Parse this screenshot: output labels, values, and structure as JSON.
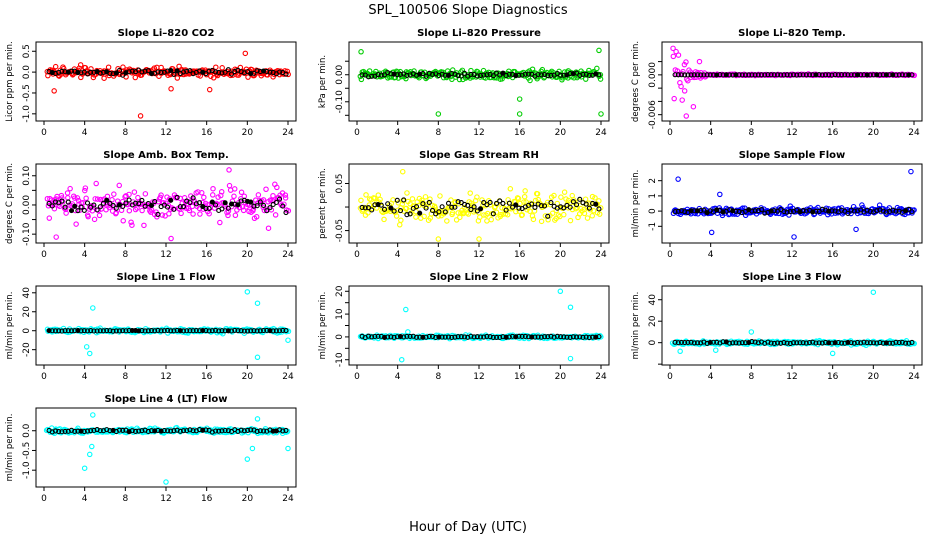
{
  "figure": {
    "title": "SPL_100506  Slope Diagnostics",
    "xlabel": "Hour of Day (UTC)"
  },
  "chart_data": [
    {
      "type": "scatter",
      "title": "Slope Li–820 CO2",
      "ylabel": "Licor ppm per min.",
      "color": "#ff0000",
      "xlim": [
        0,
        24
      ],
      "xticks": [
        "0",
        "4",
        "8",
        "12",
        "16",
        "20",
        "24"
      ],
      "ylim": [
        -1.1,
        0.65
      ],
      "yticks": [
        -1.0,
        -0.5,
        0.0,
        0.5
      ],
      "yticklabels": [
        "-1.0",
        "-0.5",
        "0.0",
        "0.5"
      ],
      "spread": 0.22,
      "black_spread": 0.12,
      "outliers": [
        [
          1,
          -0.45
        ],
        [
          9.5,
          -1.05
        ],
        [
          12.5,
          -0.4
        ],
        [
          16.3,
          -0.42
        ],
        [
          19.8,
          0.45
        ]
      ]
    },
    {
      "type": "scatter",
      "title": "Slope Li–820 Pressure",
      "ylabel": "kPa per min.",
      "color": "#00cc00",
      "xlim": [
        0,
        24
      ],
      "xticks": [
        "0",
        "4",
        "8",
        "12",
        "16",
        "20",
        "24"
      ],
      "ylim": [
        -0.16,
        0.11
      ],
      "yticks": [
        -0.15,
        -0.1,
        -0.05,
        0.0,
        0.05
      ],
      "yticklabels": [
        "",
        "-0.10",
        "",
        "0.00",
        ""
      ],
      "spread": 0.03,
      "black_spread": 0.015,
      "outliers": [
        [
          0.4,
          0.085
        ],
        [
          8,
          -0.145
        ],
        [
          16,
          -0.145
        ],
        [
          16,
          -0.09
        ],
        [
          23.8,
          0.09
        ],
        [
          24,
          -0.145
        ]
      ]
    },
    {
      "type": "scatter",
      "title": "Slope Li–820 Temp.",
      "ylabel": "degrees C per min.",
      "color": "#ff00ff",
      "xlim": [
        0,
        24
      ],
      "xticks": [
        "0",
        "4",
        "8",
        "12",
        "16",
        "20",
        "24"
      ],
      "ylim": [
        -0.0065,
        0.0045
      ],
      "yticks": [
        -0.006,
        -0.004,
        -0.002,
        0.0,
        0.002
      ],
      "yticklabels": [
        "-0.006",
        "",
        "",
        "0.000",
        ""
      ],
      "spread": 0.0002,
      "black_spread": 5e-05,
      "transient_until": 3.6,
      "transient_amp": 0.0028,
      "outliers": [
        [
          0.3,
          0.004
        ],
        [
          0.6,
          0.0035
        ],
        [
          1.2,
          -0.0038
        ],
        [
          1.6,
          -0.0062
        ],
        [
          2.3,
          -0.0048
        ],
        [
          2.9,
          0.002
        ]
      ]
    },
    {
      "type": "scatter",
      "title": "Slope Amb. Box Temp.",
      "ylabel": "degrees C per min.",
      "color": "#ff00ff",
      "xlim": [
        0,
        24
      ],
      "xticks": [
        "0",
        "4",
        "8",
        "12",
        "16",
        "20",
        "24"
      ],
      "ylim": [
        -0.12,
        0.13
      ],
      "yticks": [
        -0.1,
        -0.05,
        0.0,
        0.05,
        0.1
      ],
      "yticklabels": [
        "-0.10",
        "",
        "0.00",
        "",
        "0.10"
      ],
      "spread": 0.1,
      "black_spread": 0.05,
      "outliers": [
        [
          12.5,
          -0.115
        ],
        [
          18.2,
          0.12
        ],
        [
          1.2,
          -0.11
        ]
      ]
    },
    {
      "type": "scatter",
      "title": "Slope Gas Stream RH",
      "ylabel": "percent per min.",
      "color": "#ffff00",
      "xlim": [
        0,
        24
      ],
      "xticks": [
        "0",
        "4",
        "8",
        "12",
        "16",
        "20",
        "24"
      ],
      "ylim": [
        -0.07,
        0.085
      ],
      "yticks": [
        -0.05,
        0.0,
        0.05
      ],
      "yticklabels": [
        "-0.05",
        "",
        "0.05"
      ],
      "spread": 0.058,
      "black_spread": 0.03,
      "outliers": [
        [
          8,
          -0.068
        ],
        [
          12,
          -0.068
        ],
        [
          4.5,
          0.075
        ]
      ]
    },
    {
      "type": "scatter",
      "title": "Slope Sample Flow",
      "ylabel": "ml/min per min.",
      "color": "#0000ff",
      "xlim": [
        0,
        24
      ],
      "xticks": [
        "0",
        "4",
        "8",
        "12",
        "16",
        "20",
        "24"
      ],
      "ylim": [
        -1.9,
        2.9
      ],
      "yticks": [
        -1,
        0,
        1,
        2
      ],
      "yticklabels": [
        "-1",
        "0",
        "1",
        "2"
      ],
      "spread": 0.5,
      "black_spread": 0.25,
      "outliers": [
        [
          0.8,
          2.1
        ],
        [
          23.7,
          2.6
        ],
        [
          4.1,
          -1.4
        ],
        [
          12.2,
          -1.7
        ],
        [
          18.3,
          -1.2
        ],
        [
          4.9,
          1.1
        ]
      ]
    },
    {
      "type": "scatter",
      "title": "Slope Line 1 Flow",
      "ylabel": "ml/min per min.",
      "color": "#00ffff",
      "xlim": [
        0,
        24
      ],
      "xticks": [
        "0",
        "4",
        "8",
        "12",
        "16",
        "20",
        "24"
      ],
      "ylim": [
        -33,
        44
      ],
      "yticks": [
        -20,
        0,
        20,
        40
      ],
      "yticklabels": [
        "-20",
        "0",
        "20",
        "40"
      ],
      "spread": 4,
      "black_spread": 0.8,
      "outliers": [
        [
          4.8,
          24
        ],
        [
          4.2,
          -17
        ],
        [
          4.5,
          -24
        ],
        [
          20,
          41
        ],
        [
          21,
          29
        ],
        [
          21,
          -28
        ],
        [
          24,
          -10
        ]
      ]
    },
    {
      "type": "scatter",
      "title": "Slope Line 2 Flow",
      "ylabel": "ml/min per min.",
      "color": "#00ffff",
      "xlim": [
        0,
        24
      ],
      "xticks": [
        "0",
        "4",
        "8",
        "12",
        "16",
        "20",
        "24"
      ],
      "ylim": [
        -11,
        21
      ],
      "yticks": [
        -10,
        -5,
        0,
        5,
        10,
        15,
        20
      ],
      "yticklabels": [
        "-10",
        "",
        "0",
        "",
        "10",
        "",
        "20"
      ],
      "spread": 1.3,
      "black_spread": 0.7,
      "outliers": [
        [
          4.8,
          12
        ],
        [
          4.4,
          -10
        ],
        [
          20,
          20
        ],
        [
          21,
          13
        ],
        [
          21,
          -9.5
        ],
        [
          5,
          2.2
        ]
      ]
    },
    {
      "type": "scatter",
      "title": "Slope Line 3 Flow",
      "ylabel": "ml/min per min.",
      "color": "#00ffff",
      "xlim": [
        0,
        24
      ],
      "xticks": [
        "0",
        "4",
        "8",
        "12",
        "16",
        "20",
        "24"
      ],
      "ylim": [
        -18,
        50
      ],
      "yticks": [
        -20,
        0,
        20,
        40
      ],
      "yticklabels": [
        "",
        "0",
        "20",
        "40"
      ],
      "spread": 3,
      "black_spread": 1.5,
      "outliers": [
        [
          20,
          47
        ],
        [
          8,
          10
        ],
        [
          1,
          -8
        ],
        [
          4.5,
          -7
        ],
        [
          16,
          -10
        ]
      ]
    },
    {
      "type": "scatter",
      "title": "Slope Line 4 (LT) Flow",
      "ylabel": "ml/min per min.",
      "color": "#00ffff",
      "xlim": [
        0,
        24
      ],
      "xticks": [
        "0",
        "4",
        "8",
        "12",
        "16",
        "20",
        "24"
      ],
      "ylim": [
        -1.35,
        0.5
      ],
      "yticks": [
        -1.0,
        -0.5,
        0.0
      ],
      "yticklabels": [
        "-1.0",
        "-0.5",
        "0.0"
      ],
      "spread": 0.12,
      "black_spread": 0.07,
      "outliers": [
        [
          4.8,
          0.4
        ],
        [
          4,
          -0.95
        ],
        [
          4.5,
          -0.6
        ],
        [
          4.7,
          -0.4
        ],
        [
          12,
          -1.3
        ],
        [
          20,
          -0.72
        ],
        [
          20.5,
          -0.45
        ],
        [
          21,
          0.3
        ],
        [
          24,
          -0.45
        ]
      ]
    }
  ]
}
